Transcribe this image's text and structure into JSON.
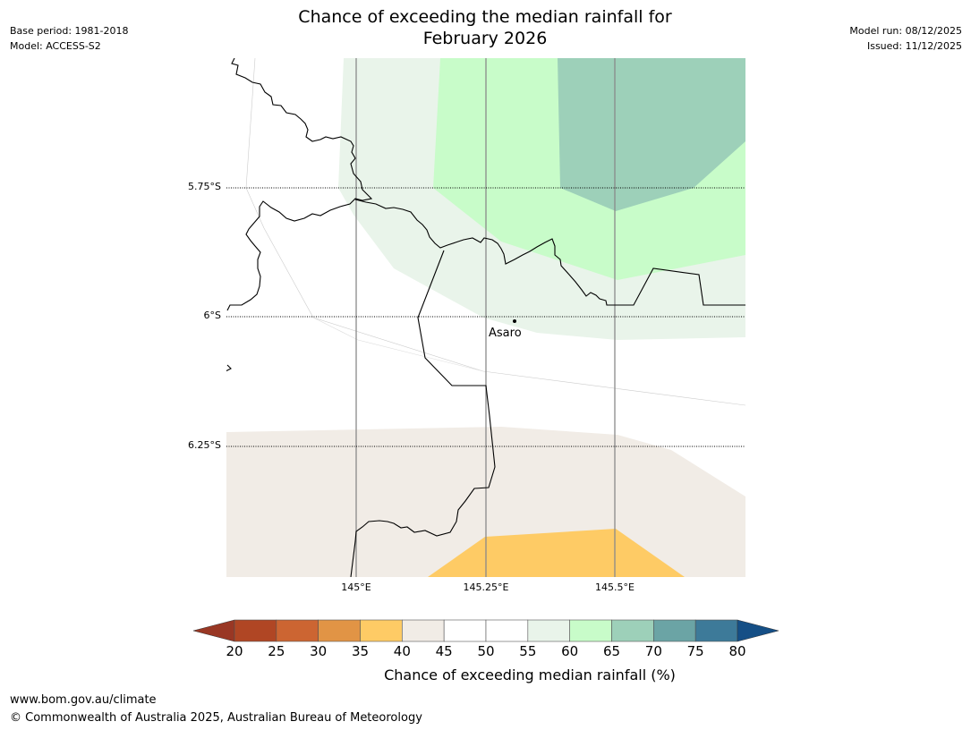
{
  "header": {
    "base_period": "Base period: 1981-2018",
    "model": "Model: ACCESS-S2",
    "title_line1": "Chance of exceeding the median rainfall for",
    "title_line2": "February 2026",
    "model_run": "Model run: 08/12/2025",
    "issued": "Issued: 11/12/2025"
  },
  "map": {
    "latitude_labels": [
      "5.75°S",
      "6°S",
      "6.25°S"
    ],
    "longitude_labels": [
      "145°E",
      "145.25°E",
      "145.5°E"
    ],
    "place": {
      "name": "Asaro"
    },
    "fill_colors": {
      "c40_45": "#f1ece6",
      "c35_40": "#fecb65",
      "c55_60": "#e9f4ea",
      "c60_65": "#c8fcc9",
      "c65_70": "#9dd0b9"
    }
  },
  "colorbar": {
    "label": "Chance of exceeding median rainfall (%)",
    "ticks": [
      "20",
      "25",
      "30",
      "35",
      "40",
      "45",
      "50",
      "55",
      "60",
      "65",
      "70",
      "75",
      "80"
    ],
    "under_color": "#993724",
    "over_color": "#154f86",
    "colors": [
      "#b04624",
      "#cc6532",
      "#e19445",
      "#fecb65",
      "#f1ece6",
      "#ffffff",
      "#ffffff",
      "#e9f4ea",
      "#c8fcc9",
      "#9dd0b9",
      "#6ba4a5",
      "#3d7a99"
    ]
  },
  "footer": {
    "url": "www.bom.gov.au/climate",
    "copyright": "© Commonwealth of Australia 2025, Australian Bureau of Meteorology"
  }
}
